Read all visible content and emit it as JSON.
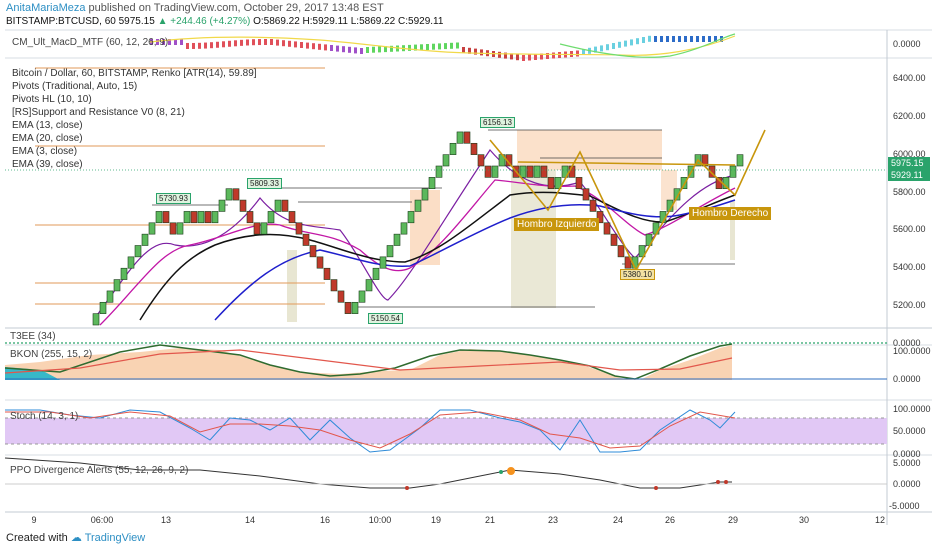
{
  "header": {
    "author": "AnitaMariaMeza",
    "published": "published on TradingView.com, October 29, 2017 13:48 EST",
    "symbol_line": "BITSTAMP:BTCUSD, 60",
    "last": "5975.15",
    "change": "▲ +244.46 (+4.27%)",
    "ohlc": "O:5869.22 H:5929.11 L:5869.22 C:5929.11"
  },
  "footer": {
    "created_with": "Created with",
    "brand": "TradingView"
  },
  "colors": {
    "up": "#5cb85c",
    "down": "#c0392b",
    "accent": "#c8960c",
    "stoch_band": "#e1c8f5",
    "panel_line": "#2ca5c4"
  },
  "panes": {
    "top_indicator": {
      "label": "CM_Ult_MacD_MTF (60, 12, 26, 9)",
      "ticks": [
        "0.0000"
      ]
    },
    "main": {
      "labels": [
        "Bitcoin / Dollar, 60, BITSTAMP, Renko [ATR(14), 59.89]",
        "Pivots (Traditional, Auto, 15)",
        "Pivots HL (10, 10)",
        "[RS]Support and Resistance V0 (8, 21)",
        "EMA (13, close)",
        "EMA (20, close)",
        "EMA (3, close)",
        "EMA (39, close)"
      ],
      "ticks": [
        "6400.00",
        "6200.00",
        "6000.00",
        "5800.00",
        "5600.00",
        "5400.00",
        "5200.00"
      ],
      "last_price_tags": [
        "5975.15",
        "5929.11"
      ],
      "annotations": [
        "5730.93",
        "5809.33",
        "6156.13",
        "5150.54",
        "5380.10",
        "Hombro Izquierdo",
        "Hombro Derecho"
      ]
    },
    "t3ee": {
      "label": "T3EE (34)",
      "ticks": [
        "0.0000"
      ]
    },
    "bkon": {
      "label": "BKON (255, 15, 2)",
      "ticks": [
        "100.0000",
        "0.0000"
      ]
    },
    "stoch": {
      "label": "Stoch (14, 3, 1)",
      "ticks": [
        "100.0000",
        "50.0000",
        "0.0000"
      ]
    },
    "ppo": {
      "label": "PPO Divergence Alerts (55, 12, 26, 9, 2)",
      "ticks": [
        "5.0000",
        "0.0000",
        "-5.0000"
      ]
    }
  },
  "x_axis": {
    "ticks": [
      "9",
      "06:00",
      "13",
      "14",
      "16",
      "10:00",
      "19",
      "21",
      "23",
      "24",
      "26",
      "29",
      "30",
      "12"
    ]
  },
  "chart_data": {
    "type": "renko",
    "title": "Bitcoin / Dollar, 60, BITSTAMP, Renko [ATR(14), 59.89]",
    "ylim": [
      5100,
      6500
    ],
    "brick_size": 59.89,
    "bricks": [
      {
        "open": 5100,
        "close": 5160
      },
      {
        "open": 5160,
        "close": 5220
      },
      {
        "open": 5220,
        "close": 5280
      },
      {
        "open": 5280,
        "close": 5340
      },
      {
        "open": 5340,
        "close": 5400
      },
      {
        "open": 5400,
        "close": 5460
      },
      {
        "open": 5460,
        "close": 5520
      },
      {
        "open": 5520,
        "close": 5580
      },
      {
        "open": 5580,
        "close": 5640
      },
      {
        "open": 5640,
        "close": 5700
      },
      {
        "open": 5700,
        "close": 5640
      },
      {
        "open": 5640,
        "close": 5580
      },
      {
        "open": 5580,
        "close": 5640
      },
      {
        "open": 5640,
        "close": 5700
      },
      {
        "open": 5700,
        "close": 5640
      },
      {
        "open": 5640,
        "close": 5700
      },
      {
        "open": 5700,
        "close": 5640
      },
      {
        "open": 5640,
        "close": 5700
      },
      {
        "open": 5700,
        "close": 5760
      },
      {
        "open": 5760,
        "close": 5820
      },
      {
        "open": 5820,
        "close": 5760
      },
      {
        "open": 5760,
        "close": 5700
      },
      {
        "open": 5700,
        "close": 5640
      },
      {
        "open": 5640,
        "close": 5580
      },
      {
        "open": 5580,
        "close": 5640
      },
      {
        "open": 5640,
        "close": 5700
      },
      {
        "open": 5700,
        "close": 5760
      },
      {
        "open": 5760,
        "close": 5700
      },
      {
        "open": 5700,
        "close": 5640
      },
      {
        "open": 5640,
        "close": 5580
      },
      {
        "open": 5580,
        "close": 5520
      },
      {
        "open": 5520,
        "close": 5460
      },
      {
        "open": 5460,
        "close": 5400
      },
      {
        "open": 5400,
        "close": 5340
      },
      {
        "open": 5340,
        "close": 5280
      },
      {
        "open": 5280,
        "close": 5220
      },
      {
        "open": 5220,
        "close": 5160
      },
      {
        "open": 5160,
        "close": 5220
      },
      {
        "open": 5220,
        "close": 5280
      },
      {
        "open": 5280,
        "close": 5340
      },
      {
        "open": 5340,
        "close": 5400
      },
      {
        "open": 5400,
        "close": 5460
      },
      {
        "open": 5460,
        "close": 5520
      },
      {
        "open": 5520,
        "close": 5580
      },
      {
        "open": 5580,
        "close": 5640
      },
      {
        "open": 5640,
        "close": 5700
      },
      {
        "open": 5700,
        "close": 5760
      },
      {
        "open": 5760,
        "close": 5820
      },
      {
        "open": 5820,
        "close": 5880
      },
      {
        "open": 5880,
        "close": 5940
      },
      {
        "open": 5940,
        "close": 6000
      },
      {
        "open": 6000,
        "close": 6060
      },
      {
        "open": 6060,
        "close": 6120
      },
      {
        "open": 6120,
        "close": 6060
      },
      {
        "open": 6060,
        "close": 6000
      },
      {
        "open": 6000,
        "close": 5940
      },
      {
        "open": 5940,
        "close": 5880
      },
      {
        "open": 5880,
        "close": 5940
      },
      {
        "open": 5940,
        "close": 6000
      },
      {
        "open": 6000,
        "close": 5940
      },
      {
        "open": 5940,
        "close": 5880
      },
      {
        "open": 5880,
        "close": 5940
      },
      {
        "open": 5940,
        "close": 5880
      },
      {
        "open": 5880,
        "close": 5940
      },
      {
        "open": 5940,
        "close": 5880
      },
      {
        "open": 5880,
        "close": 5820
      },
      {
        "open": 5820,
        "close": 5880
      },
      {
        "open": 5880,
        "close": 5940
      },
      {
        "open": 5940,
        "close": 5880
      },
      {
        "open": 5880,
        "close": 5820
      },
      {
        "open": 5820,
        "close": 5760
      },
      {
        "open": 5760,
        "close": 5700
      },
      {
        "open": 5700,
        "close": 5640
      },
      {
        "open": 5640,
        "close": 5580
      },
      {
        "open": 5580,
        "close": 5520
      },
      {
        "open": 5520,
        "close": 5460
      },
      {
        "open": 5460,
        "close": 5400
      },
      {
        "open": 5400,
        "close": 5460
      },
      {
        "open": 5460,
        "close": 5520
      },
      {
        "open": 5520,
        "close": 5580
      },
      {
        "open": 5580,
        "close": 5640
      },
      {
        "open": 5640,
        "close": 5700
      },
      {
        "open": 5700,
        "close": 5760
      },
      {
        "open": 5760,
        "close": 5820
      },
      {
        "open": 5820,
        "close": 5880
      },
      {
        "open": 5880,
        "close": 5940
      },
      {
        "open": 5940,
        "close": 6000
      },
      {
        "open": 6000,
        "close": 5940
      },
      {
        "open": 5940,
        "close": 5880
      },
      {
        "open": 5880,
        "close": 5820
      },
      {
        "open": 5820,
        "close": 5880
      },
      {
        "open": 5880,
        "close": 5940
      },
      {
        "open": 5940,
        "close": 6000
      }
    ],
    "pivot_labels": [
      {
        "label": "5730.93",
        "value": 5730.93
      },
      {
        "label": "5809.33",
        "value": 5809.33
      },
      {
        "label": "6156.13",
        "value": 6156.13
      },
      {
        "label": "5150.54",
        "value": 5150.54
      },
      {
        "label": "5380.10",
        "value": 5380.1
      }
    ],
    "last_price": 5975.15,
    "close_price": 5929.11
  }
}
